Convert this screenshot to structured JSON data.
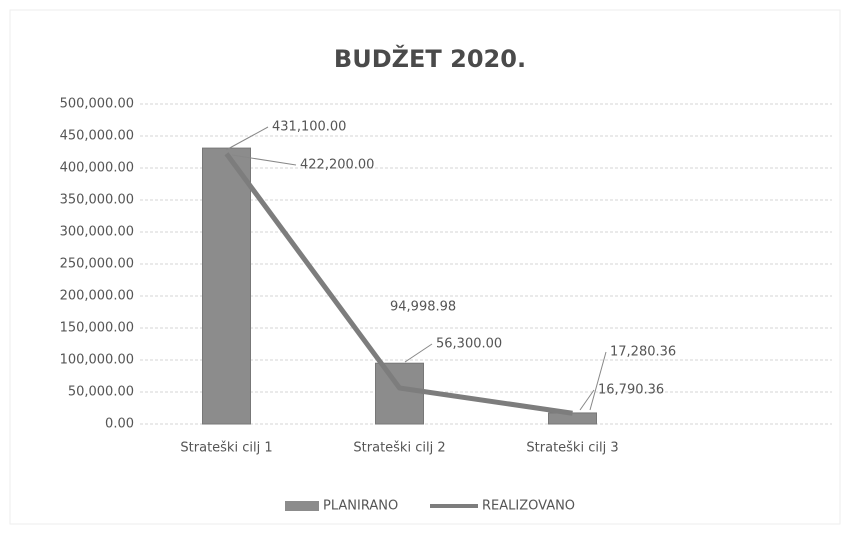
{
  "chart_data": {
    "type": "combo",
    "title": "BUDŽET 2020.",
    "categories": [
      "Strateški cilj 1",
      "Strateški cilj 2",
      "Strateški cilj 3"
    ],
    "series": [
      {
        "name": "PLANIRANO",
        "type": "bar",
        "color": "#8c8c8c",
        "values": [
          431100,
          94998.98,
          17280.36
        ],
        "value_labels": [
          "431,100.00",
          "94,998.98",
          "17,280.36"
        ]
      },
      {
        "name": "REALIZOVANO",
        "type": "line",
        "color": "#7d7d7d",
        "values": [
          422200,
          56300,
          16790.36
        ],
        "value_labels": [
          "422,200.00",
          "56,300.00",
          "16,790.36"
        ]
      }
    ],
    "ylim": [
      0,
      500000
    ],
    "yticks": [
      {
        "value": 0,
        "label": "0.00"
      },
      {
        "value": 50000,
        "label": "50,000.00"
      },
      {
        "value": 100000,
        "label": "100,000.00"
      },
      {
        "value": 150000,
        "label": "150,000.00"
      },
      {
        "value": 200000,
        "label": "200,000.00"
      },
      {
        "value": 250000,
        "label": "250,000.00"
      },
      {
        "value": 300000,
        "label": "300,000.00"
      },
      {
        "value": 350000,
        "label": "350,000.00"
      },
      {
        "value": 400000,
        "label": "400,000.00"
      },
      {
        "value": 450000,
        "label": "450,000.00"
      },
      {
        "value": 500000,
        "label": "500,000.00"
      }
    ],
    "grid": true,
    "legend": "bottom"
  }
}
